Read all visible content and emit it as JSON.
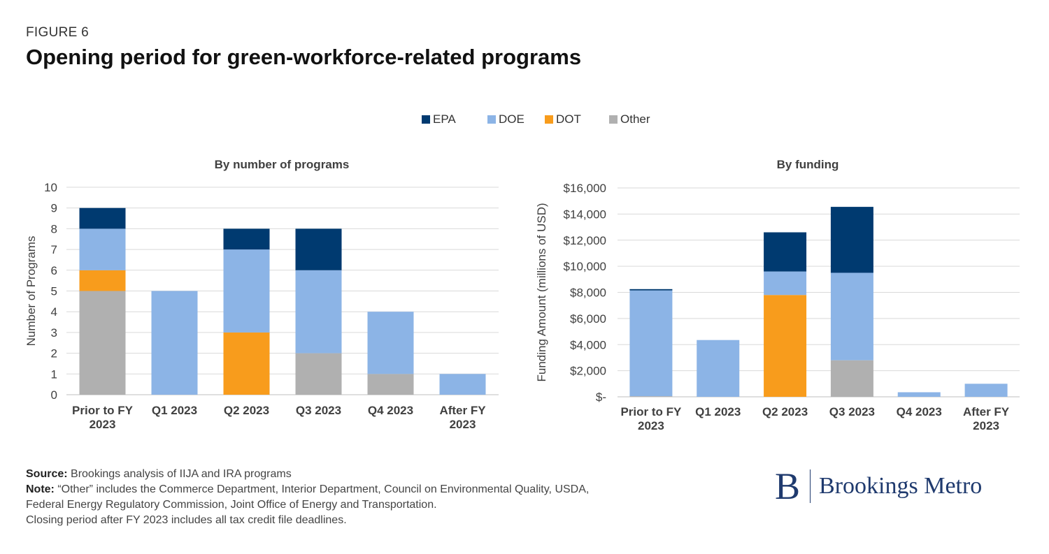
{
  "figure": {
    "label": "FIGURE 6",
    "title": "Opening period for green-workforce-related programs"
  },
  "legend": [
    {
      "name": "EPA",
      "color": "#003a70"
    },
    {
      "name": "DOE",
      "color": "#8cb4e6"
    },
    {
      "name": "DOT",
      "color": "#f89c1c"
    },
    {
      "name": "Other",
      "color": "#b0b0b0"
    }
  ],
  "chart_data": [
    {
      "type": "bar",
      "stacked": true,
      "title": "By number of programs",
      "ylabel": "Number of Programs",
      "xlabel": "",
      "categories": [
        [
          "Prior to FY",
          "2023"
        ],
        [
          "Q1 2023"
        ],
        [
          "Q2 2023"
        ],
        [
          "Q3 2023"
        ],
        [
          "Q4 2023"
        ],
        [
          "After FY",
          "2023"
        ]
      ],
      "ylim": [
        0,
        10
      ],
      "yticks": [
        0,
        1,
        2,
        3,
        4,
        5,
        6,
        7,
        8,
        9,
        10
      ],
      "ytick_labels": [
        "0",
        "1",
        "2",
        "3",
        "4",
        "5",
        "6",
        "7",
        "8",
        "9",
        "10"
      ],
      "grid": true,
      "series": [
        {
          "name": "Other",
          "color": "#b0b0b0",
          "values": [
            5,
            0,
            0,
            2,
            1,
            0
          ]
        },
        {
          "name": "DOT",
          "color": "#f89c1c",
          "values": [
            1,
            0,
            3,
            0,
            0,
            0
          ]
        },
        {
          "name": "DOE",
          "color": "#8cb4e6",
          "values": [
            2,
            5,
            4,
            4,
            3,
            1
          ]
        },
        {
          "name": "EPA",
          "color": "#003a70",
          "values": [
            1,
            0,
            1,
            2,
            0,
            0
          ]
        }
      ]
    },
    {
      "type": "bar",
      "stacked": true,
      "title": "By funding",
      "ylabel": "Funding Amount (millions of USD)",
      "xlabel": "",
      "categories": [
        [
          "Prior to FY",
          "2023"
        ],
        [
          "Q1 2023"
        ],
        [
          "Q2 2023"
        ],
        [
          "Q3 2023"
        ],
        [
          "Q4 2023"
        ],
        [
          "After FY",
          "2023"
        ]
      ],
      "ylim": [
        0,
        16000
      ],
      "yticks": [
        0,
        2000,
        4000,
        6000,
        8000,
        10000,
        12000,
        14000,
        16000
      ],
      "ytick_labels": [
        "$-",
        "$2,000",
        "$4,000",
        "$6,000",
        "$8,000",
        "$10,000",
        "$12,000",
        "$14,000",
        "$16,000"
      ],
      "grid": true,
      "series": [
        {
          "name": "Other",
          "color": "#b0b0b0",
          "values": [
            50,
            0,
            0,
            2800,
            0,
            0
          ]
        },
        {
          "name": "DOT",
          "color": "#f89c1c",
          "values": [
            0,
            0,
            7800,
            0,
            0,
            0
          ]
        },
        {
          "name": "DOE",
          "color": "#8cb4e6",
          "values": [
            8100,
            4350,
            1800,
            6700,
            350,
            1000
          ]
        },
        {
          "name": "EPA",
          "color": "#003a70",
          "values": [
            100,
            0,
            3000,
            5050,
            0,
            0
          ]
        }
      ]
    }
  ],
  "footer": {
    "source_label": "Source:",
    "source_text": " Brookings analysis of IIJA and IRA programs",
    "note_label": "Note:",
    "note_text": " “Other” includes the Commerce Department, Interior Department, Council on Environmental Quality, USDA,",
    "note_line2": "Federal Energy Regulatory Commission, Joint Office of Energy and Transportation.",
    "note_line3": "Closing period after FY 2023 includes all tax credit file deadlines."
  },
  "logo": {
    "mark": "B",
    "text": "Brookings Metro"
  }
}
